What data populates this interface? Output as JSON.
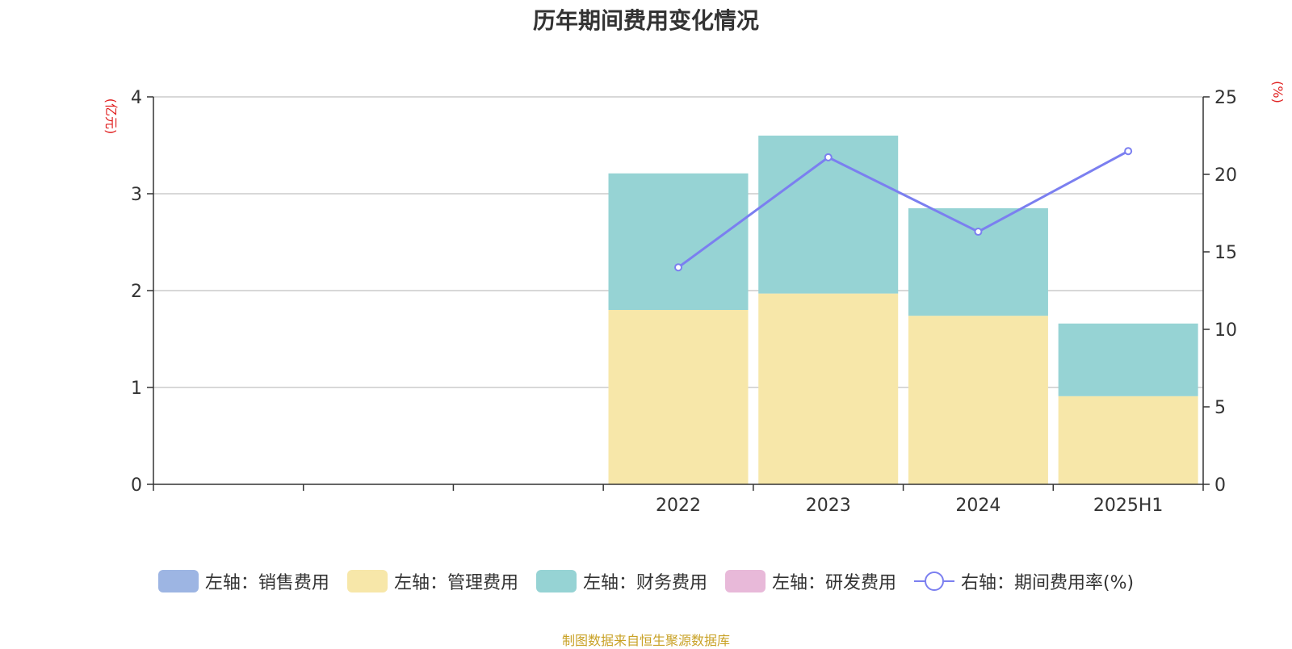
{
  "chart_data": {
    "type": "bar",
    "title": "历年期间费用变化情况",
    "categories": [
      "",
      "",
      "",
      "2022",
      "2023",
      "2024",
      "2025H1"
    ],
    "left_axis": {
      "unit_label": "(亿元)",
      "ylim": [
        0,
        4
      ],
      "ticks": [
        "0",
        "1",
        "2",
        "3",
        "4"
      ]
    },
    "right_axis": {
      "unit_label": "(%)",
      "ylim": [
        0,
        25
      ],
      "ticks": [
        "0",
        "5",
        "10",
        "15",
        "20",
        "25"
      ]
    },
    "series": [
      {
        "name": "左轴：销售费用",
        "kind": "bar",
        "axis": "left",
        "color": "#9db5e3",
        "values": [
          0,
          0,
          0,
          0,
          0,
          0,
          0
        ]
      },
      {
        "name": "左轴：管理费用",
        "kind": "bar",
        "axis": "left",
        "color": "#f7e7a9",
        "values": [
          null,
          null,
          null,
          1.8,
          1.97,
          1.74,
          0.91
        ]
      },
      {
        "name": "左轴：财务费用",
        "kind": "bar",
        "axis": "left",
        "color": "#96d3d4",
        "values": [
          null,
          null,
          null,
          1.41,
          1.63,
          1.11,
          0.75
        ]
      },
      {
        "name": "左轴：研发费用",
        "kind": "bar",
        "axis": "left",
        "color": "#e8b9d9",
        "values": [
          0,
          0,
          0,
          0,
          0,
          0,
          0
        ]
      },
      {
        "name": "右轴：期间费用率(%)",
        "kind": "line",
        "axis": "right",
        "color": "#7b7ff0",
        "values": [
          null,
          null,
          null,
          14.0,
          21.1,
          16.3,
          21.5
        ]
      }
    ],
    "grid": true,
    "legend_position": "bottom"
  },
  "source_note": "制图数据来自恒生聚源数据库"
}
